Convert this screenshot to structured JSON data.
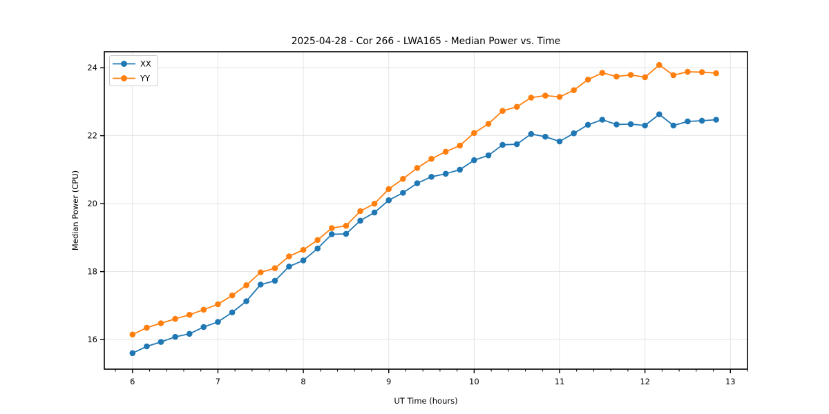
{
  "chart_data": {
    "type": "line",
    "title": "2025-04-28 - Cor 266 - LWA165 - Median Power vs. Time",
    "xlabel": "UT Time (hours)",
    "ylabel": "Median Power (CPU)",
    "xlim": [
      5.67,
      13.2
    ],
    "ylim": [
      15.13,
      24.47
    ],
    "xticks": [
      6,
      7,
      8,
      9,
      10,
      11,
      12,
      13
    ],
    "yticks": [
      16,
      18,
      20,
      22,
      24
    ],
    "x_minor_step": 0.2,
    "grid": true,
    "grid_color": "#e3e3e3",
    "spine_color": "#000000",
    "legend_position": "upper left",
    "x": [
      6.0,
      6.167,
      6.333,
      6.5,
      6.667,
      6.833,
      7.0,
      7.167,
      7.333,
      7.5,
      7.667,
      7.833,
      8.0,
      8.167,
      8.333,
      8.5,
      8.667,
      8.833,
      9.0,
      9.167,
      9.333,
      9.5,
      9.667,
      9.833,
      10.0,
      10.167,
      10.333,
      10.5,
      10.667,
      10.833,
      11.0,
      11.167,
      11.333,
      11.5,
      11.667,
      11.833,
      12.0,
      12.167,
      12.333,
      12.5,
      12.667,
      12.833
    ],
    "series": [
      {
        "name": "XX",
        "color": "#1f77b4",
        "values": [
          15.6,
          15.8,
          15.93,
          16.08,
          16.17,
          16.37,
          16.52,
          16.8,
          17.13,
          17.62,
          17.73,
          18.15,
          18.33,
          18.68,
          19.1,
          19.11,
          19.5,
          19.74,
          20.1,
          20.32,
          20.6,
          20.79,
          20.88,
          21.0,
          21.28,
          21.42,
          21.73,
          21.75,
          22.05,
          21.97,
          21.83,
          22.07,
          22.32,
          22.47,
          22.33,
          22.34,
          22.3,
          22.63,
          22.3,
          22.42,
          22.44,
          22.47
        ]
      },
      {
        "name": "YY",
        "color": "#ff7f0e",
        "values": [
          16.15,
          16.35,
          16.48,
          16.61,
          16.73,
          16.88,
          17.04,
          17.3,
          17.6,
          17.98,
          18.1,
          18.45,
          18.64,
          18.93,
          19.28,
          19.35,
          19.78,
          20.0,
          20.43,
          20.73,
          21.05,
          21.32,
          21.53,
          21.71,
          22.08,
          22.35,
          22.73,
          22.85,
          23.12,
          23.18,
          23.14,
          23.34,
          23.65,
          23.85,
          23.74,
          23.79,
          23.72,
          24.08,
          23.78,
          23.88,
          23.87,
          23.84
        ]
      }
    ]
  }
}
